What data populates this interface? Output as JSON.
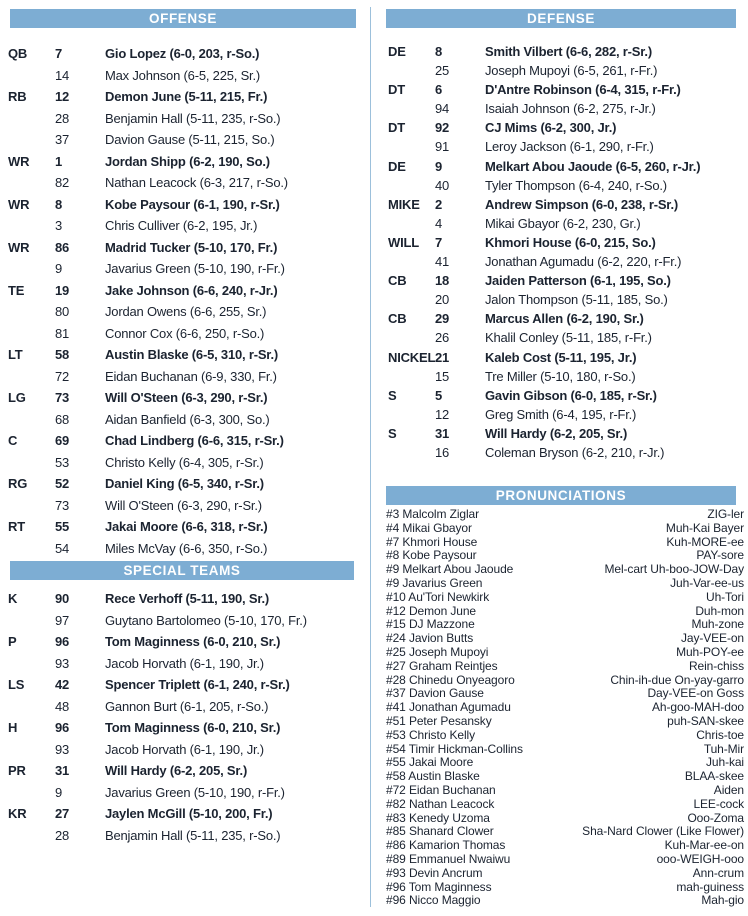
{
  "colors": {
    "header_bg": "#7dadd3",
    "header_text": "#ffffff",
    "body_text": "#1b2330",
    "divider": "#9cc0db"
  },
  "sections": {
    "offense": {
      "title": "OFFENSE",
      "rows": [
        {
          "pos": "QB",
          "num": "7",
          "name": "Gio Lopez (6-0, 203, r-So.)",
          "starter": true
        },
        {
          "pos": "",
          "num": "14",
          "name": "Max Johnson (6-5, 225, Sr.)",
          "starter": false
        },
        {
          "pos": "RB",
          "num": "12",
          "name": "Demon June (5-11, 215, Fr.)",
          "starter": true
        },
        {
          "pos": "",
          "num": "28",
          "name": "Benjamin Hall (5-11, 235, r-So.)",
          "starter": false
        },
        {
          "pos": "",
          "num": "37",
          "name": "Davion Gause (5-11, 215, So.)",
          "starter": false
        },
        {
          "pos": "WR",
          "num": "1",
          "name": "Jordan Shipp (6-2, 190, So.)",
          "starter": true
        },
        {
          "pos": "",
          "num": "82",
          "name": "Nathan Leacock (6-3, 217, r-So.)",
          "starter": false
        },
        {
          "pos": "WR",
          "num": "8",
          "name": "Kobe Paysour (6-1, 190, r-Sr.)",
          "starter": true
        },
        {
          "pos": "",
          "num": "3",
          "name": "Chris Culliver (6-2, 195, Jr.)",
          "starter": false
        },
        {
          "pos": "WR",
          "num": "86",
          "name": "Madrid Tucker (5-10, 170, Fr.)",
          "starter": true
        },
        {
          "pos": "",
          "num": "9",
          "name": "Javarius Green (5-10, 190, r-Fr.)",
          "starter": false
        },
        {
          "pos": "TE",
          "num": "19",
          "name": "Jake Johnson (6-6, 240, r-Jr.)",
          "starter": true
        },
        {
          "pos": "",
          "num": "80",
          "name": "Jordan Owens (6-6, 255, Sr.)",
          "starter": false
        },
        {
          "pos": "",
          "num": "81",
          "name": "Connor Cox (6-6, 250, r-So.)",
          "starter": false
        },
        {
          "pos": "LT",
          "num": "58",
          "name": "Austin Blaske (6-5, 310, r-Sr.)",
          "starter": true
        },
        {
          "pos": "",
          "num": "72",
          "name": "Eidan Buchanan (6-9, 330, Fr.)",
          "starter": false
        },
        {
          "pos": "LG",
          "num": "73",
          "name": "Will O'Steen (6-3, 290, r-Sr.)",
          "starter": true
        },
        {
          "pos": "",
          "num": "68",
          "name": "Aidan Banfield (6-3, 300, So.)",
          "starter": false
        },
        {
          "pos": "C",
          "num": "69",
          "name": "Chad Lindberg (6-6, 315, r-Sr.)",
          "starter": true
        },
        {
          "pos": "",
          "num": "53",
          "name": "Christo Kelly (6-4, 305, r-Sr.)",
          "starter": false
        },
        {
          "pos": "RG",
          "num": "52",
          "name": "Daniel King (6-5, 340, r-Sr.)",
          "starter": true
        },
        {
          "pos": "",
          "num": "73",
          "name": "Will O'Steen (6-3, 290, r-Sr.)",
          "starter": false
        },
        {
          "pos": "RT",
          "num": "55",
          "name": "Jakai Moore (6-6, 318, r-Sr.)",
          "starter": true
        },
        {
          "pos": "",
          "num": "54",
          "name": "Miles McVay (6-6, 350, r-So.)",
          "starter": false
        }
      ]
    },
    "special_teams": {
      "title": "SPECIAL TEAMS",
      "rows": [
        {
          "pos": "K",
          "num": "90",
          "name": "Rece Verhoff (5-11, 190, Sr.)",
          "starter": true
        },
        {
          "pos": "",
          "num": "97",
          "name": "Guytano Bartolomeo (5-10, 170, Fr.)",
          "starter": false
        },
        {
          "pos": "P",
          "num": "96",
          "name": "Tom Maginness (6-0, 210, Sr.)",
          "starter": true
        },
        {
          "pos": "",
          "num": "93",
          "name": "Jacob Horvath (6-1, 190, Jr.)",
          "starter": false
        },
        {
          "pos": "LS",
          "num": "42",
          "name": "Spencer Triplett (6-1, 240, r-Sr.)",
          "starter": true
        },
        {
          "pos": "",
          "num": "48",
          "name": "Gannon Burt (6-1, 205, r-So.)",
          "starter": false
        },
        {
          "pos": "H",
          "num": "96",
          "name": "Tom Maginness (6-0, 210, Sr.)",
          "starter": true
        },
        {
          "pos": "",
          "num": "93",
          "name": "Jacob Horvath (6-1, 190, Jr.)",
          "starter": false
        },
        {
          "pos": "PR",
          "num": "31",
          "name": "Will Hardy (6-2, 205, Sr.)",
          "starter": true
        },
        {
          "pos": "",
          "num": "9",
          "name": "Javarius Green (5-10, 190, r-Fr.)",
          "starter": false
        },
        {
          "pos": "KR",
          "num": "27",
          "name": "Jaylen McGill (5-10, 200, Fr.)",
          "starter": true
        },
        {
          "pos": "",
          "num": "28",
          "name": "Benjamin Hall (5-11, 235, r-So.)",
          "starter": false
        }
      ]
    },
    "defense": {
      "title": "DEFENSE",
      "rows": [
        {
          "pos": "DE",
          "num": "8",
          "name": "Smith Vilbert (6-6, 282, r-Sr.)",
          "starter": true
        },
        {
          "pos": "",
          "num": "25",
          "name": "Joseph Mupoyi (6-5, 261, r-Fr.)",
          "starter": false
        },
        {
          "pos": "DT",
          "num": "6",
          "name": "D'Antre Robinson (6-4, 315, r-Fr.)",
          "starter": true
        },
        {
          "pos": "",
          "num": "94",
          "name": "Isaiah Johnson (6-2, 275, r-Jr.)",
          "starter": false
        },
        {
          "pos": "DT",
          "num": "92",
          "name": "CJ Mims (6-2, 300, Jr.)",
          "starter": true
        },
        {
          "pos": "",
          "num": "91",
          "name": "Leroy Jackson (6-1, 290, r-Fr.)",
          "starter": false
        },
        {
          "pos": "DE",
          "num": "9",
          "name": "Melkart Abou Jaoude (6-5, 260, r-Jr.)",
          "starter": true
        },
        {
          "pos": "",
          "num": "40",
          "name": "Tyler Thompson (6-4, 240, r-So.)",
          "starter": false
        },
        {
          "pos": "MIKE",
          "num": "2",
          "name": "Andrew Simpson (6-0, 238, r-Sr.)",
          "starter": true
        },
        {
          "pos": "",
          "num": "4",
          "name": "Mikai Gbayor (6-2, 230, Gr.)",
          "starter": false
        },
        {
          "pos": "WILL",
          "num": "7",
          "name": "Khmori House (6-0, 215, So.)",
          "starter": true
        },
        {
          "pos": "",
          "num": "41",
          "name": "Jonathan Agumadu (6-2, 220, r-Fr.)",
          "starter": false
        },
        {
          "pos": "CB",
          "num": "18",
          "name": "Jaiden Patterson (6-1, 195, So.)",
          "starter": true
        },
        {
          "pos": "",
          "num": "20",
          "name": "Jalon Thompson (5-11, 185, So.)",
          "starter": false
        },
        {
          "pos": "CB",
          "num": "29",
          "name": "Marcus Allen (6-2, 190, Sr.)",
          "starter": true
        },
        {
          "pos": "",
          "num": "26",
          "name": "Khalil Conley (5-11, 185, r-Fr.)",
          "starter": false
        },
        {
          "pos": "NICKEL",
          "num": "21",
          "name": "Kaleb Cost (5-11, 195, Jr.)",
          "starter": true
        },
        {
          "pos": "",
          "num": "15",
          "name": "Tre Miller (5-10, 180, r-So.)",
          "starter": false
        },
        {
          "pos": "S",
          "num": "5",
          "name": "Gavin Gibson (6-0, 185, r-Sr.)",
          "starter": true
        },
        {
          "pos": "",
          "num": "12",
          "name": "Greg Smith (6-4, 195, r-Fr.)",
          "starter": false
        },
        {
          "pos": "S",
          "num": "31",
          "name": "Will Hardy (6-2, 205, Sr.)",
          "starter": true
        },
        {
          "pos": "",
          "num": "16",
          "name": "Coleman Bryson (6-2, 210, r-Jr.)",
          "starter": false
        }
      ]
    },
    "pronunciations": {
      "title": "PRONUNCIATIONS",
      "rows": [
        {
          "player": "#3 Malcolm Ziglar",
          "pron": "ZIG-ler"
        },
        {
          "player": "#4 Mikai Gbayor",
          "pron": "Muh-Kai Bayer"
        },
        {
          "player": "#7 Khmori House",
          "pron": "Kuh-MORE-ee"
        },
        {
          "player": "#8 Kobe Paysour",
          "pron": "PAY-sore"
        },
        {
          "player": "#9 Melkart Abou Jaoude",
          "pron": "Mel-cart Uh-boo-JOW-Day"
        },
        {
          "player": "#9 Javarius Green",
          "pron": "Juh-Var-ee-us"
        },
        {
          "player": "#10 Au'Tori Newkirk",
          "pron": "Uh-Tori"
        },
        {
          "player": "#12 Demon June",
          "pron": "Duh-mon"
        },
        {
          "player": "#15 DJ Mazzone",
          "pron": "Muh-zone"
        },
        {
          "player": "#24 Javion Butts",
          "pron": "Jay-VEE-on"
        },
        {
          "player": "#25 Joseph Mupoyi",
          "pron": "Muh-POY-ee"
        },
        {
          "player": "#27 Graham Reintjes",
          "pron": "Rein-chiss"
        },
        {
          "player": "#28 Chinedu Onyeagoro",
          "pron": "Chin-ih-due On-yay-garro"
        },
        {
          "player": "#37 Davion Gause",
          "pron": "Day-VEE-on Goss"
        },
        {
          "player": "#41 Jonathan Agumadu",
          "pron": "Ah-goo-MAH-doo"
        },
        {
          "player": "#51 Peter Pesansky",
          "pron": "puh-SAN-skee"
        },
        {
          "player": "#53 Christo Kelly",
          "pron": "Chris-toe"
        },
        {
          "player": "#54 Timir Hickman-Collins",
          "pron": "Tuh-Mir"
        },
        {
          "player": "#55 Jakai Moore",
          "pron": "Juh-kai"
        },
        {
          "player": "#58 Austin Blaske",
          "pron": "BLAA-skee"
        },
        {
          "player": "#72 Eidan Buchanan",
          "pron": "Aiden"
        },
        {
          "player": "#82 Nathan Leacock",
          "pron": "LEE-cock"
        },
        {
          "player": "#83 Kenedy Uzoma",
          "pron": "Ooo-Zoma"
        },
        {
          "player": "#85 Shanard Clower",
          "pron": "Sha-Nard Clower (Like Flower)"
        },
        {
          "player": "#86 Kamarion Thomas",
          "pron": "Kuh-Mar-ee-on"
        },
        {
          "player": "#89 Emmanuel Nwaiwu",
          "pron": "ooo-WEIGH-ooo"
        },
        {
          "player": "#93 Devin Ancrum",
          "pron": "Ann-crum"
        },
        {
          "player": "#96 Tom Maginness",
          "pron": "mah-guiness"
        },
        {
          "player": "#96 Nicco Maggio",
          "pron": "Mah-gio"
        }
      ]
    }
  }
}
